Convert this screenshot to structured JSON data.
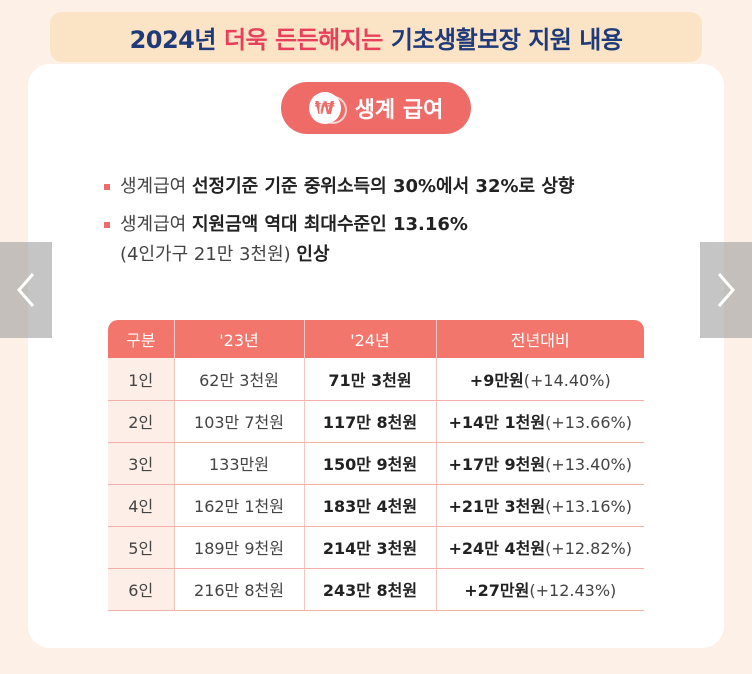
{
  "title": {
    "prefix": "2024년",
    "highlight": "더욱 든든해지는",
    "suffix": "기초생활보장 지원 내용"
  },
  "section_pill": {
    "icon": "won-coin-icon",
    "label": "생계 급여"
  },
  "bullets": [
    {
      "plain": "생계급여",
      "bold": "선정기준 기준 중위소득의 30%에서 32%로 상향"
    },
    {
      "plain": "생계급여",
      "bold": "지원금액 역대 최대수준인 13.16%",
      "line2_plain": "(4인가구 21만 3천원)",
      "line2_bold": "인상"
    }
  ],
  "table": {
    "headers": [
      "구분",
      "'23년",
      "'24년",
      "전년대비"
    ],
    "rows": [
      {
        "group": "1인",
        "y23": "62만 3천원",
        "y24": "71만 3천원",
        "diff": "+9만원",
        "pct": "(+14.40%)"
      },
      {
        "group": "2인",
        "y23": "103만 7천원",
        "y24": "117만 8천원",
        "diff": "+14만 1천원",
        "pct": "(+13.66%)"
      },
      {
        "group": "3인",
        "y23": "133만원",
        "y24": "150만 9천원",
        "diff": "+17만 9천원",
        "pct": "(+13.40%)"
      },
      {
        "group": "4인",
        "y23": "162만 1천원",
        "y24": "183만 4천원",
        "diff": "+21만 3천원",
        "pct": "(+13.16%)"
      },
      {
        "group": "5인",
        "y23": "189만 9천원",
        "y24": "214만 3천원",
        "diff": "+24만 4천원",
        "pct": "(+12.82%)"
      },
      {
        "group": "6인",
        "y23": "216만 8천원",
        "y24": "243만 8천원",
        "diff": "+27만원",
        "pct": "(+12.43%)"
      }
    ]
  },
  "nav": {
    "prev_icon": "chevron-left-icon",
    "next_icon": "chevron-right-icon"
  },
  "colors": {
    "accent": "#ef6b67",
    "title": "#1f3a78",
    "highlight": "#e8405a"
  }
}
